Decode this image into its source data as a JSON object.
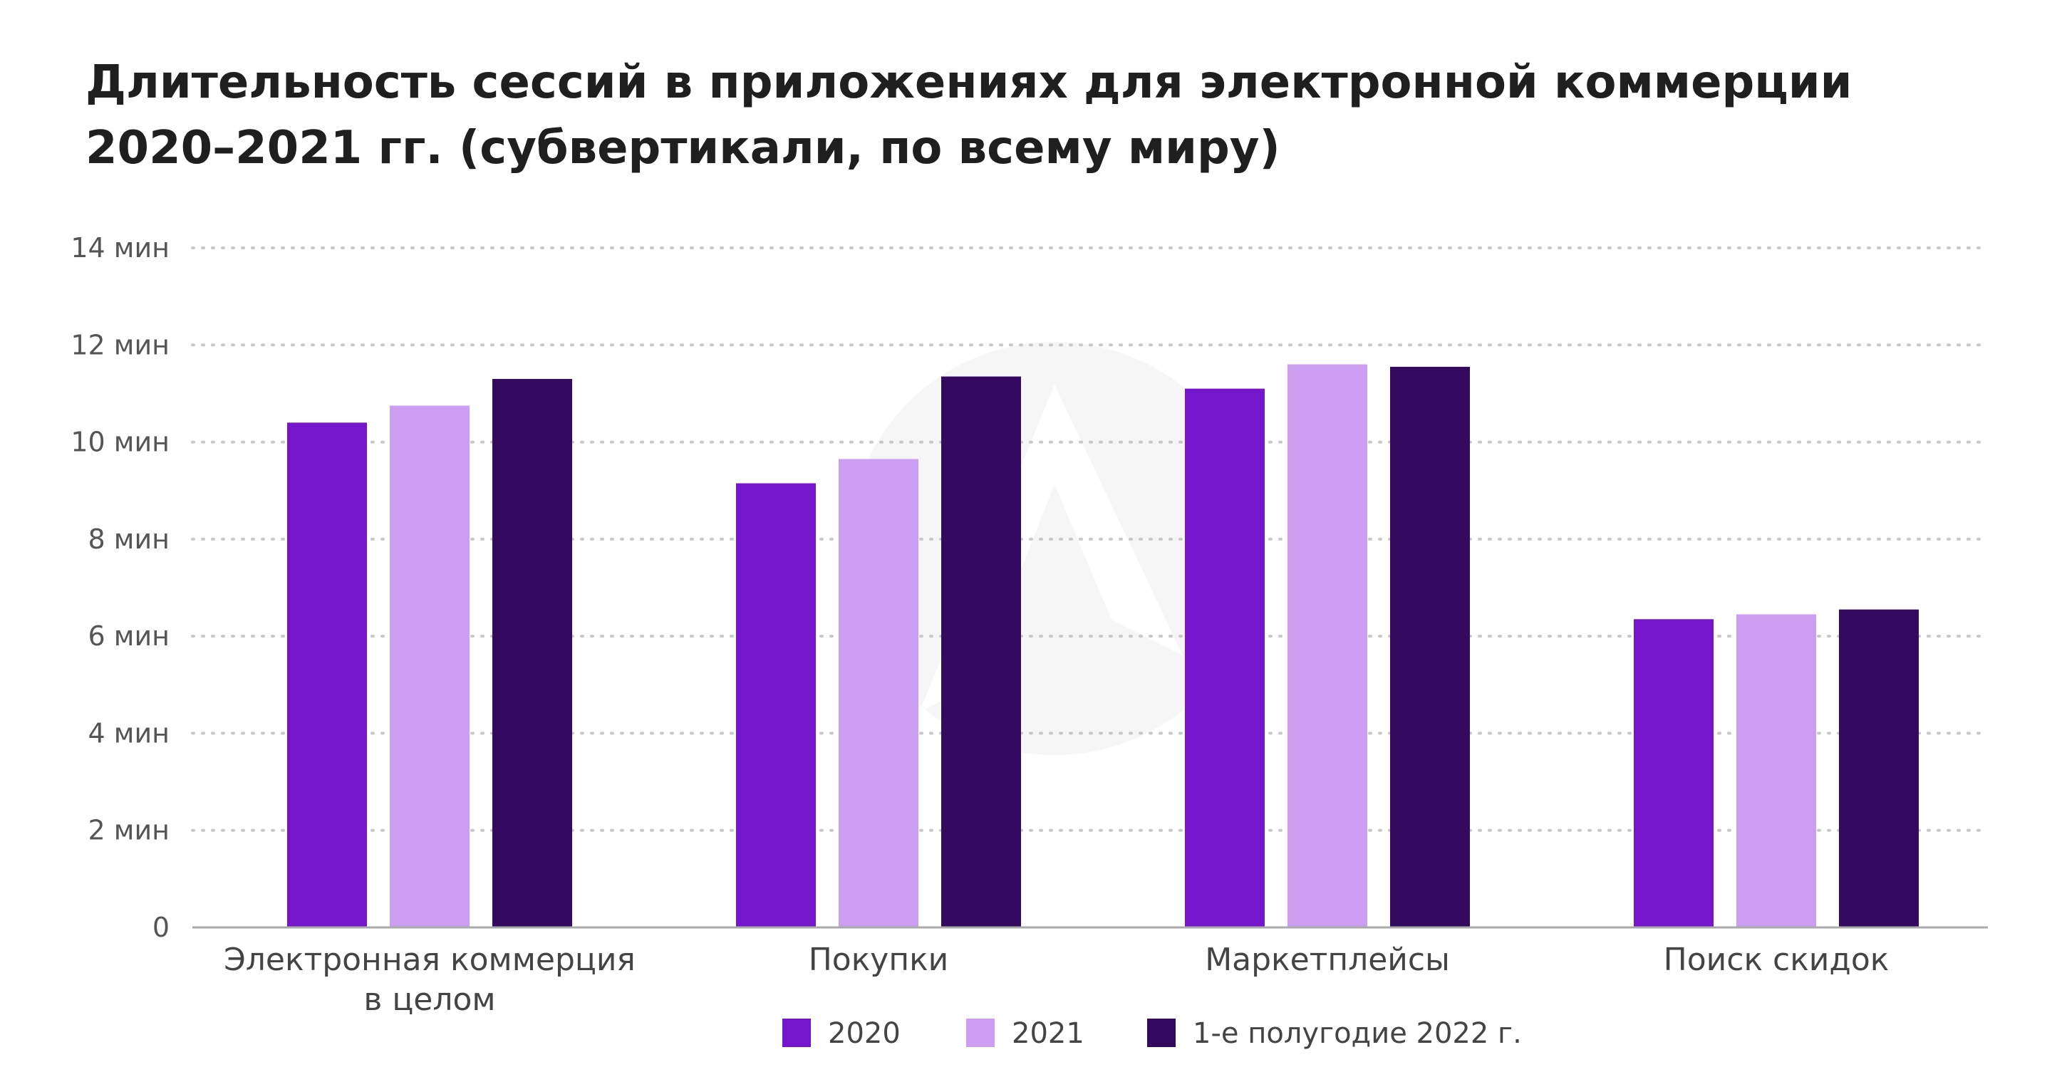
{
  "title_lines": [
    "Длительность сессий в приложениях для электронной коммерции",
    "2020–2021 гг. (субвертикали, по всему миру)"
  ],
  "colors": {
    "series_2020": "#7515cc",
    "series_2021": "#cb9ef2",
    "series_2022h1": "#330a60",
    "grid": "#c8c8c8",
    "axis": "#aaaaaa",
    "text": "#444444",
    "title": "#1f1f1f"
  },
  "chart_data": {
    "type": "bar",
    "title": "Длительность сессий в приложениях для электронной коммерции 2020–2021 гг. (субвертикали, по всему миру)",
    "categories": [
      [
        "Электронная коммерция",
        "в целом"
      ],
      [
        "Покупки"
      ],
      [
        "Маркетплейсы"
      ],
      [
        "Поиск скидок"
      ]
    ],
    "series": [
      {
        "name": "2020",
        "values": [
          10.4,
          9.15,
          11.1,
          6.35
        ]
      },
      {
        "name": "2021",
        "values": [
          10.75,
          9.65,
          11.6,
          6.45
        ]
      },
      {
        "name": "1-е полугодие 2022 г.",
        "values": [
          11.3,
          11.35,
          11.55,
          6.55
        ]
      }
    ],
    "ylim": [
      0,
      14
    ],
    "yticks": [
      0,
      2,
      4,
      6,
      8,
      10,
      12,
      14
    ],
    "ytick_labels": [
      "0",
      "2 мин",
      "4 мин",
      "6 мин",
      "8 мин",
      "10 мин",
      "12 мин",
      "14 мин"
    ],
    "xlabel": "",
    "ylabel": "",
    "grid": true,
    "legend_position": "bottom-center"
  }
}
